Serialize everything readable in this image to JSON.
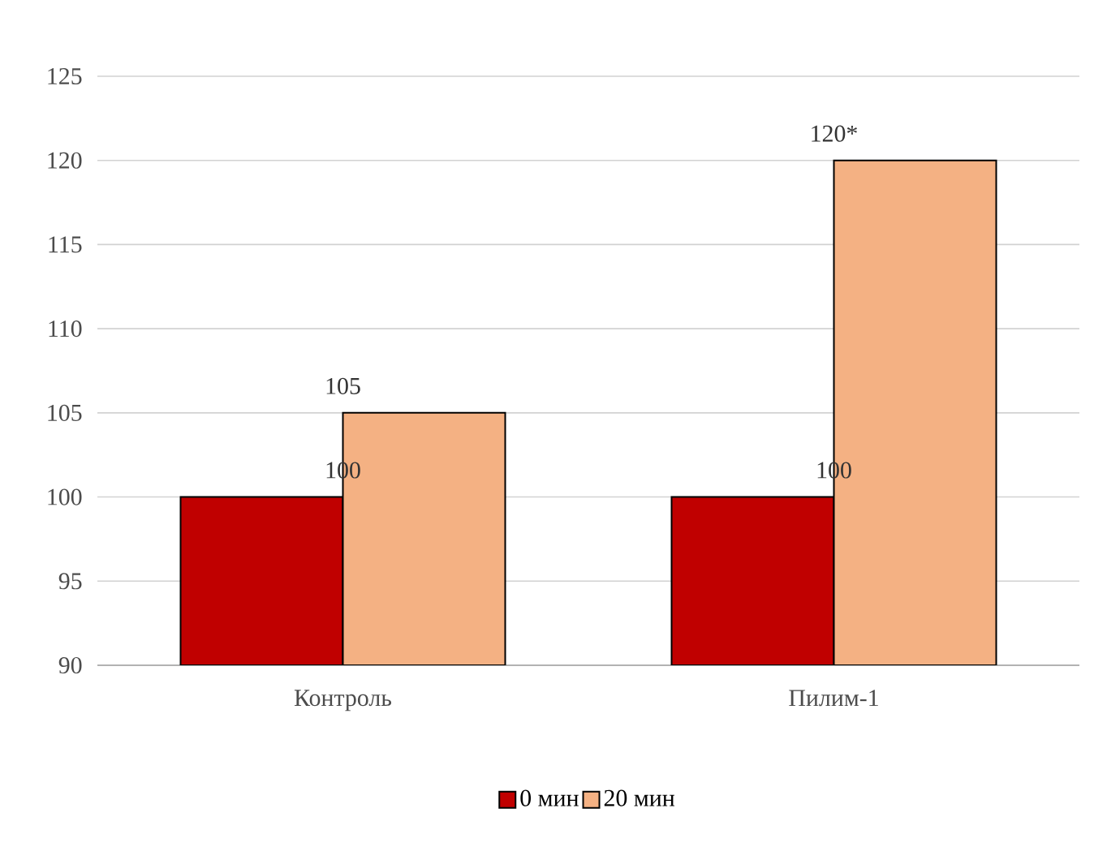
{
  "chart_data": {
    "type": "bar",
    "categories": [
      "Контроль",
      "Пилим-1"
    ],
    "series": [
      {
        "name": "0 мин",
        "color": "#c00000",
        "values": [
          100,
          100
        ],
        "value_labels": [
          "100",
          "100"
        ]
      },
      {
        "name": "20 мин",
        "color": "#f4b183",
        "values": [
          105,
          120
        ],
        "value_labels": [
          "105",
          "120*"
        ]
      }
    ],
    "ylim": [
      90,
      125
    ],
    "yticks": [
      90,
      95,
      100,
      105,
      110,
      115,
      120,
      125
    ],
    "grid": "y",
    "legend": "bottom"
  }
}
